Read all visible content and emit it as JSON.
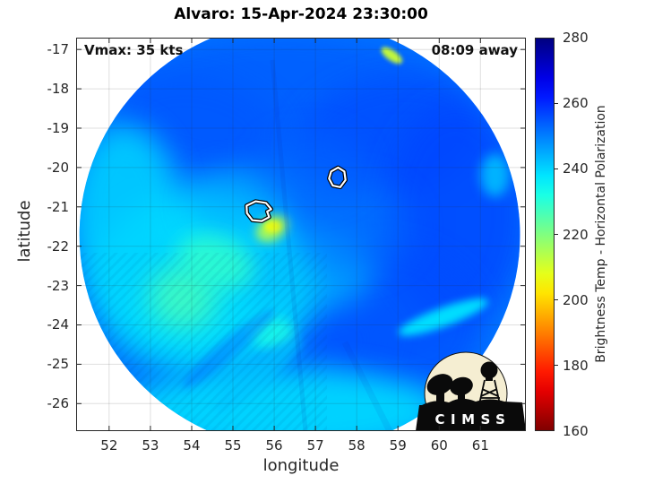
{
  "title": "Alvaro: 15-Apr-2024 23:30:00",
  "annotations": {
    "top_left": "Vmax: 35 kts",
    "top_right": "08:09 away"
  },
  "axes": {
    "xlabel": "longitude",
    "ylabel": "latitude",
    "x_ticks": [
      52,
      53,
      54,
      55,
      56,
      57,
      58,
      59,
      60,
      61
    ],
    "y_ticks": [
      -17,
      -18,
      -19,
      -20,
      -21,
      -22,
      -23,
      -24,
      -25,
      -26
    ],
    "xlim": [
      51.2,
      62.1
    ],
    "ylim": [
      -26.7,
      -16.7
    ],
    "grid": true
  },
  "colorbar": {
    "label": "Brightness Temp - Horizontal Polarization",
    "ticks": [
      280,
      260,
      240,
      220,
      200,
      180,
      160
    ],
    "min": 160,
    "max": 280,
    "colormap": "jet-reversed"
  },
  "logo": {
    "text": "CIMSS"
  },
  "chart_data": {
    "type": "heatmap",
    "storm_name": "Alvaro",
    "timestamp": "15-Apr-2024 23:30:00",
    "vmax_kts": 35,
    "time_offset": "08:09 away",
    "title": "Alvaro: 15-Apr-2024 23:30:00",
    "xlabel": "longitude",
    "ylabel": "latitude",
    "xlim": [
      51.2,
      62.1
    ],
    "ylim": [
      -26.7,
      -16.7
    ],
    "value_label": "Brightness Temp - Horizontal Polarization",
    "value_range": [
      160,
      280
    ],
    "legend_position": "right-colorbar",
    "grid": true,
    "swath": {
      "center_lon": 56.62,
      "center_lat": -21.72,
      "radius_lon_deg": 5.34,
      "radius_lat_deg": 5.47,
      "background_temp_K": 251
    },
    "features": [
      {
        "name": "north-blue-band",
        "lon": 56.3,
        "lat": -18.3,
        "rx_deg": 4.3,
        "ry_deg": 1.7,
        "rot_deg": 0,
        "temp_K": 254,
        "opacity": 0.9
      },
      {
        "name": "northwest-dark-patch",
        "lon": 54.2,
        "lat": -18.9,
        "rx_deg": 2.0,
        "ry_deg": 1.2,
        "rot_deg": 10,
        "temp_K": 255,
        "opacity": 0.6
      },
      {
        "name": "northeast-dark-patch",
        "lon": 58.8,
        "lat": -19.2,
        "rx_deg": 2.3,
        "ry_deg": 1.5,
        "rot_deg": -10,
        "temp_K": 256,
        "opacity": 0.75
      },
      {
        "name": "east-deep-blue",
        "lon": 60.4,
        "lat": -21.2,
        "rx_deg": 1.7,
        "ry_deg": 2.8,
        "rot_deg": 0,
        "temp_K": 257,
        "opacity": 0.8
      },
      {
        "name": "southeast-deep-blue",
        "lon": 58.9,
        "lat": -23.8,
        "rx_deg": 2.2,
        "ry_deg": 1.8,
        "rot_deg": 15,
        "temp_K": 256,
        "opacity": 0.75
      },
      {
        "name": "south-center-dark",
        "lon": 57.2,
        "lat": -24.6,
        "rx_deg": 1.6,
        "ry_deg": 1.1,
        "rot_deg": -20,
        "temp_K": 255,
        "opacity": 0.6
      },
      {
        "name": "southwest-cyan-region",
        "lon": 54.3,
        "lat": -22.9,
        "rx_deg": 2.7,
        "ry_deg": 2.3,
        "rot_deg": 0,
        "temp_K": 238,
        "opacity": 0.9
      },
      {
        "name": "west-cyan-band",
        "lon": 52.4,
        "lat": -21.2,
        "rx_deg": 1.3,
        "ry_deg": 2.3,
        "rot_deg": 0,
        "temp_K": 240,
        "opacity": 0.85
      },
      {
        "name": "south-cyan-band",
        "lon": 56.2,
        "lat": -26.2,
        "rx_deg": 3.9,
        "ry_deg": 1.1,
        "rot_deg": 0,
        "temp_K": 239,
        "opacity": 0.9
      },
      {
        "name": "center-cyan-patch",
        "lon": 56.7,
        "lat": -22.6,
        "rx_deg": 1.7,
        "ry_deg": 1.1,
        "rot_deg": 0,
        "temp_K": 243,
        "opacity": 0.7
      },
      {
        "name": "west-mid-cyan",
        "lon": 55.1,
        "lat": -20.9,
        "rx_deg": 1.2,
        "ry_deg": 0.9,
        "rot_deg": 0,
        "temp_K": 245,
        "opacity": 0.6
      },
      {
        "name": "southwest-green-patch",
        "lon": 53.8,
        "lat": -23.3,
        "rx_deg": 0.85,
        "ry_deg": 0.85,
        "rot_deg": 0,
        "temp_K": 227,
        "opacity": 0.8
      },
      {
        "name": "west-green-patch",
        "lon": 54.6,
        "lat": -22.4,
        "rx_deg": 0.95,
        "ry_deg": 0.65,
        "rot_deg": 20,
        "temp_K": 229,
        "opacity": 0.8
      },
      {
        "name": "south-green-spot",
        "lon": 55.95,
        "lat": -24.2,
        "rx_deg": 0.55,
        "ry_deg": 0.4,
        "rot_deg": 0,
        "temp_K": 232,
        "opacity": 0.75
      },
      {
        "name": "yellow-patch",
        "lon": 55.95,
        "lat": -21.55,
        "rx_deg": 0.42,
        "ry_deg": 0.3,
        "rot_deg": -30,
        "temp_K": 213,
        "opacity": 0.9
      },
      {
        "name": "yellow-core",
        "lon": 55.97,
        "lat": -21.5,
        "rx_deg": 0.2,
        "ry_deg": 0.15,
        "rot_deg": 0,
        "temp_K": 207,
        "opacity": 0.95
      },
      {
        "name": "north-edge-yellow-spot",
        "lon": 58.85,
        "lat": -17.15,
        "rx_deg": 0.3,
        "ry_deg": 0.13,
        "rot_deg": 35,
        "temp_K": 211,
        "opacity": 0.95
      },
      {
        "name": "southeast-cyan-streak",
        "lon": 60.1,
        "lat": -23.8,
        "rx_deg": 1.15,
        "ry_deg": 0.24,
        "rot_deg": -20,
        "temp_K": 236,
        "opacity": 0.85
      },
      {
        "name": "east-edge-cyan-spot",
        "lon": 61.35,
        "lat": -20.2,
        "rx_deg": 0.35,
        "ry_deg": 0.55,
        "rot_deg": 0,
        "temp_K": 241,
        "opacity": 0.8
      },
      {
        "name": "south-cyan-streak",
        "lon": 55.6,
        "lat": -25.3,
        "rx_deg": 1.35,
        "ry_deg": 0.3,
        "rot_deg": -40,
        "temp_K": 242,
        "opacity": 0.7
      },
      {
        "name": "southwest-dark-streak",
        "lon": 54.9,
        "lat": -24.6,
        "rx_deg": 1.45,
        "ry_deg": 0.25,
        "rot_deg": -40,
        "temp_K": 252,
        "opacity": 0.5
      },
      {
        "name": "center-east-soft-dark",
        "lon": 57.9,
        "lat": -21.5,
        "rx_deg": 1.5,
        "ry_deg": 1.2,
        "rot_deg": 0,
        "temp_K": 253,
        "opacity": 0.5
      },
      {
        "name": "center-north-soft-dark",
        "lon": 56.9,
        "lat": -20.0,
        "rx_deg": 1.3,
        "ry_deg": 0.9,
        "rot_deg": 0,
        "temp_K": 253,
        "opacity": 0.5
      }
    ],
    "contours": [
      {
        "name": "contour-east",
        "points": [
          [
            57.38,
            -20.1
          ],
          [
            57.55,
            -20.0
          ],
          [
            57.7,
            -20.1
          ],
          [
            57.73,
            -20.32
          ],
          [
            57.6,
            -20.5
          ],
          [
            57.42,
            -20.46
          ],
          [
            57.33,
            -20.28
          ]
        ]
      },
      {
        "name": "contour-west",
        "points": [
          [
            55.33,
            -20.97
          ],
          [
            55.55,
            -20.86
          ],
          [
            55.8,
            -20.9
          ],
          [
            55.93,
            -21.06
          ],
          [
            55.83,
            -21.12
          ],
          [
            55.88,
            -21.26
          ],
          [
            55.7,
            -21.36
          ],
          [
            55.47,
            -21.34
          ],
          [
            55.34,
            -21.16
          ]
        ]
      }
    ]
  }
}
